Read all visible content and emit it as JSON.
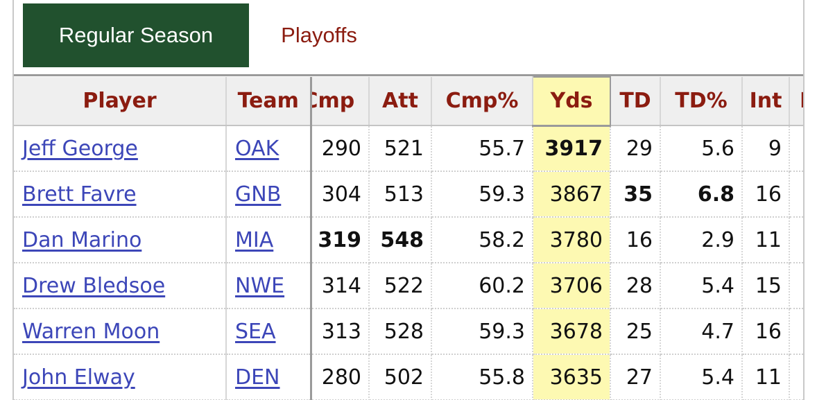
{
  "tabs": {
    "regular": "Regular Season",
    "playoffs": "Playoffs"
  },
  "columns": {
    "player": "Player",
    "team": "Team",
    "cmp": "Cmp",
    "att": "Att",
    "cmp_pct": "Cmp%",
    "yds": "Yds",
    "td": "TD",
    "td_pct": "TD%",
    "int": "Int",
    "next_partial": "I"
  },
  "rows": [
    {
      "player": "Jeff George",
      "team": "OAK",
      "cmp": "290",
      "att": "521",
      "cmp_pct": "55.7",
      "yds": "3917",
      "td": "29",
      "td_pct": "5.6",
      "int": "9"
    },
    {
      "player": "Brett Favre",
      "team": "GNB",
      "cmp": "304",
      "att": "513",
      "cmp_pct": "59.3",
      "yds": "3867",
      "td": "35",
      "td_pct": "6.8",
      "int": "16"
    },
    {
      "player": "Dan Marino",
      "team": "MIA",
      "cmp": "319",
      "att": "548",
      "cmp_pct": "58.2",
      "yds": "3780",
      "td": "16",
      "td_pct": "2.9",
      "int": "11"
    },
    {
      "player": "Drew Bledsoe",
      "team": "NWE",
      "cmp": "314",
      "att": "522",
      "cmp_pct": "60.2",
      "yds": "3706",
      "td": "28",
      "td_pct": "5.4",
      "int": "15"
    },
    {
      "player": "Warren Moon",
      "team": "SEA",
      "cmp": "313",
      "att": "528",
      "cmp_pct": "59.3",
      "yds": "3678",
      "td": "25",
      "td_pct": "4.7",
      "int": "16"
    },
    {
      "player": "John Elway",
      "team": "DEN",
      "cmp": "280",
      "att": "502",
      "cmp_pct": "55.8",
      "yds": "3635",
      "td": "27",
      "td_pct": "5.4",
      "int": "11"
    }
  ],
  "leaders": {
    "cmp": "319",
    "att": "548",
    "yds": "3917",
    "td": "35",
    "td_pct": "6.8"
  },
  "colors": {
    "active_tab": "#21512e",
    "header_text": "#8b1c10",
    "link": "#3c46b8",
    "highlight_column": "#fdf9b2"
  }
}
